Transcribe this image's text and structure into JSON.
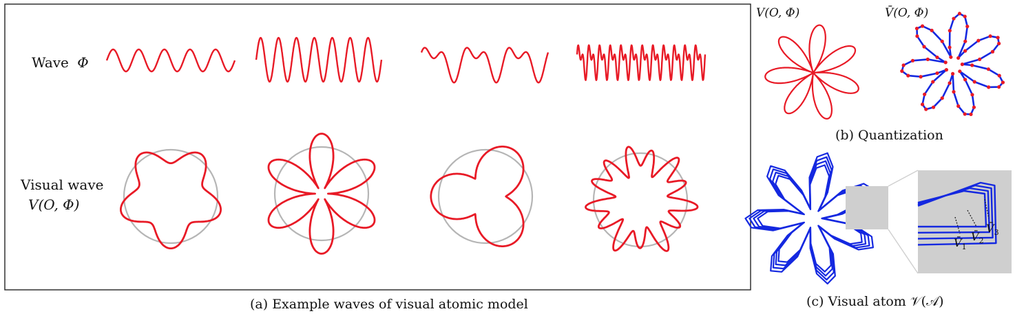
{
  "colors": {
    "wave": "#e81a26",
    "circle": "#b5b5b5",
    "quant": "#1428e0",
    "vertex": "#e81a26",
    "frame": "#222222",
    "zoom": "#cfcfcf"
  },
  "panel_a": {
    "row1_label": "Wave",
    "row1_symbol": "Φ",
    "row2_label_line1": "Visual wave",
    "row2_label_line2": "V(O, Φ)",
    "caption": "(a) Example waves of visual atomic model",
    "waves": [
      {
        "petals": 5,
        "amplitude": 0.22
      },
      {
        "petals": 6,
        "amplitude": 1.0
      },
      {
        "petals": 3,
        "amplitude": 0.7
      },
      {
        "petals": 12,
        "amplitude": 0.35
      }
    ]
  },
  "panel_b": {
    "left_label": "V(O, Φ)",
    "right_label": "V̄(O, Φ)",
    "caption": "(b) Quantization"
  },
  "panel_c": {
    "callout_1": "V̄",
    "callout_1_sub": "1",
    "callout_2": "V̄",
    "callout_2_sub": "2",
    "callout_3": "V̄",
    "callout_3_sub": "3",
    "caption": "(c) Visual atom 𝒱(𝒜)"
  }
}
